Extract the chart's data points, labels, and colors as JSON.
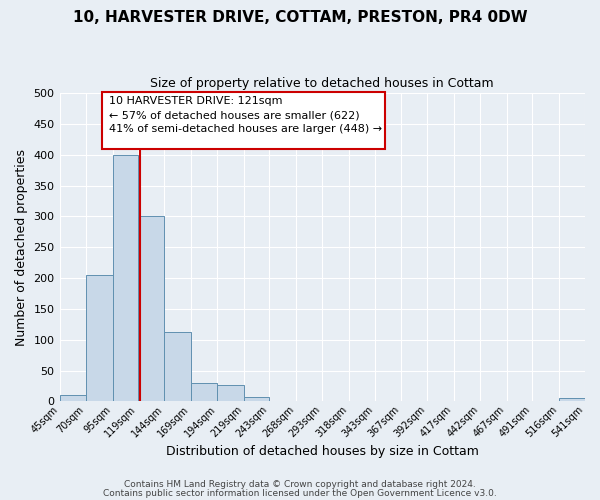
{
  "title": "10, HARVESTER DRIVE, COTTAM, PRESTON, PR4 0DW",
  "subtitle": "Size of property relative to detached houses in Cottam",
  "xlabel": "Distribution of detached houses by size in Cottam",
  "ylabel": "Number of detached properties",
  "bar_edges": [
    45,
    70,
    95,
    119,
    144,
    169,
    194,
    219,
    243,
    268,
    293,
    318,
    343,
    367,
    392,
    417,
    442,
    467,
    491,
    516,
    541
  ],
  "bar_heights": [
    10,
    205,
    400,
    300,
    113,
    30,
    27,
    7,
    0,
    0,
    0,
    0,
    0,
    0,
    0,
    0,
    0,
    0,
    0,
    5
  ],
  "bar_color": "#C8D8E8",
  "bar_edge_color": "#6090B0",
  "vline_x": 121,
  "vline_color": "#CC0000",
  "annotation_line1": "10 HARVESTER DRIVE: 121sqm",
  "annotation_line2": "← 57% of detached houses are smaller (622)",
  "annotation_line3": "41% of semi-detached houses are larger (448) →",
  "annotation_box_color": "#CC0000",
  "annotation_box_fill": "#FFFFFF",
  "ylim": [
    0,
    500
  ],
  "tick_labels": [
    "45sqm",
    "70sqm",
    "95sqm",
    "119sqm",
    "144sqm",
    "169sqm",
    "194sqm",
    "219sqm",
    "243sqm",
    "268sqm",
    "293sqm",
    "318sqm",
    "343sqm",
    "367sqm",
    "392sqm",
    "417sqm",
    "442sqm",
    "467sqm",
    "491sqm",
    "516sqm",
    "541sqm"
  ],
  "background_color": "#E8EEF4",
  "grid_color": "#FFFFFF",
  "footer_line1": "Contains HM Land Registry data © Crown copyright and database right 2024.",
  "footer_line2": "Contains public sector information licensed under the Open Government Licence v3.0."
}
